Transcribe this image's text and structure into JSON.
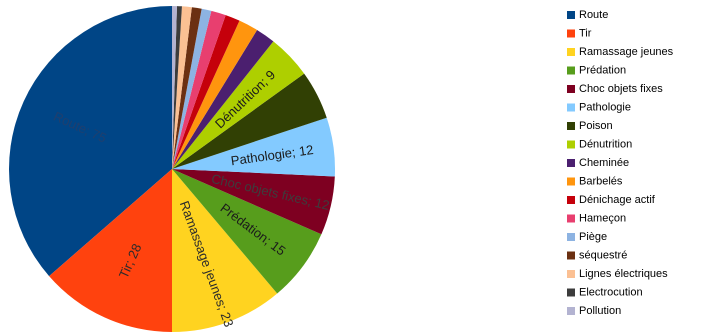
{
  "chart_data": {
    "type": "pie",
    "title": "",
    "label_format": "{name}; {value}",
    "slices": [
      {
        "name": "Route",
        "value": 75,
        "color": "#004586",
        "label_color": "#1f3f6e"
      },
      {
        "name": "Tir",
        "value": 28,
        "color": "#ff420e",
        "label_color": "#2b2b2b"
      },
      {
        "name": "Ramassage jeunes",
        "value": 23,
        "color": "#ffd320",
        "label_color": "#2b2b2b"
      },
      {
        "name": "Prédation",
        "value": 15,
        "color": "#579d1c",
        "label_color": "#1b1b1b"
      },
      {
        "name": "Choc objets fixes",
        "value": 12,
        "color": "#7e0021",
        "label_color": "#3d3d3d"
      },
      {
        "name": "Pathologie",
        "value": 12,
        "color": "#83caff",
        "label_color": "#1b1b1b"
      },
      {
        "name": "Poison",
        "value": 10,
        "color": "#314004",
        "label_color": "#3d3d3d"
      },
      {
        "name": "Dénutrition",
        "value": 9,
        "color": "#aecf00",
        "label_color": "#1b1b1b"
      },
      {
        "name": "Cheminée",
        "value": 4,
        "color": "#4b1f6f",
        "label_color": "#1b1b1b"
      },
      {
        "name": "Barbelés",
        "value": 4,
        "color": "#ff950e",
        "label_color": "#1b1b1b"
      },
      {
        "name": "Dénichage actif",
        "value": 3,
        "color": "#c5000b",
        "label_color": "#1b1b1b"
      },
      {
        "name": "Hameçon",
        "value": 3,
        "color": "#e83f6f",
        "label_color": "#1b1b1b"
      },
      {
        "name": "Piège",
        "value": 2,
        "color": "#8db3e2",
        "label_color": "#1b1b1b"
      },
      {
        "name": "séquestré",
        "value": 2,
        "color": "#6b3012",
        "label_color": "#1b1b1b"
      },
      {
        "name": "Lignes électriques",
        "value": 2,
        "color": "#fbc093",
        "label_color": "#1b1b1b"
      },
      {
        "name": "Electrocution",
        "value": 1,
        "color": "#3c3c3c",
        "label_color": "#1b1b1b"
      },
      {
        "name": "Pollution",
        "value": 1,
        "color": "#b3b3d1",
        "label_color": "#1b1b1b"
      }
    ],
    "visible_labels": [
      "Route",
      "Tir",
      "Ramassage jeunes",
      "Prédation",
      "Choc objets fixes",
      "Pathologie",
      "Dénutrition"
    ],
    "legend_position": "right"
  }
}
